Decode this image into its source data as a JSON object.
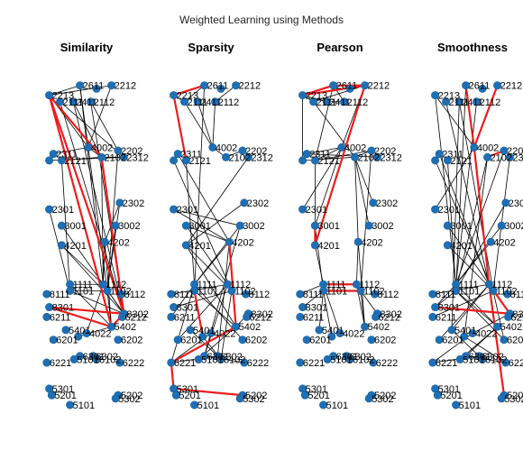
{
  "figure": {
    "title": "Weighted Learning using Methods"
  },
  "chart_data": {
    "type": "network",
    "node_color": "#1f6fb5",
    "edge_color": "#000000",
    "highlight_color": "#ee1c1c",
    "axes": "off",
    "nodes": [
      {
        "id": "2611",
        "x": 0.42,
        "y": 0.96
      },
      {
        "id": "2213",
        "x": 0.05,
        "y": 0.93
      },
      {
        "id": "2212",
        "x": 0.8,
        "y": 0.96
      },
      {
        "id": "2111",
        "x": 0.18,
        "y": 0.91
      },
      {
        "id": "2411",
        "x": 0.34,
        "y": 0.91
      },
      {
        "id": "2112",
        "x": 0.55,
        "y": 0.91
      },
      {
        "id": "2312b",
        "x": 0.62,
        "y": 0.95
      },
      {
        "id": "4002",
        "x": 0.52,
        "y": 0.77
      },
      {
        "id": "2312",
        "x": 0.95,
        "y": 0.74
      },
      {
        "id": "2202",
        "x": 0.88,
        "y": 0.76
      },
      {
        "id": "2102",
        "x": 0.68,
        "y": 0.74
      },
      {
        "id": "2311",
        "x": 0.1,
        "y": 0.75
      },
      {
        "id": "2221",
        "x": 0.05,
        "y": 0.73
      },
      {
        "id": "2121",
        "x": 0.2,
        "y": 0.73
      },
      {
        "id": "2302",
        "x": 0.9,
        "y": 0.6
      },
      {
        "id": "2301",
        "x": 0.05,
        "y": 0.58
      },
      {
        "id": "3001",
        "x": 0.2,
        "y": 0.53
      },
      {
        "id": "3002",
        "x": 0.85,
        "y": 0.53
      },
      {
        "id": "4201",
        "x": 0.2,
        "y": 0.47
      },
      {
        "id": "4202",
        "x": 0.72,
        "y": 0.48
      },
      {
        "id": "1112",
        "x": 0.7,
        "y": 0.35
      },
      {
        "id": "1111",
        "x": 0.3,
        "y": 0.35
      },
      {
        "id": "1102",
        "x": 0.75,
        "y": 0.33
      },
      {
        "id": "1101",
        "x": 0.3,
        "y": 0.33
      },
      {
        "id": "8112",
        "x": 0.92,
        "y": 0.32
      },
      {
        "id": "8111",
        "x": 0.02,
        "y": 0.32
      },
      {
        "id": "8301",
        "x": 0.05,
        "y": 0.28
      },
      {
        "id": "8302",
        "x": 0.95,
        "y": 0.26
      },
      {
        "id": "6211",
        "x": 0.02,
        "y": 0.25
      },
      {
        "id": "6212",
        "x": 0.93,
        "y": 0.25
      },
      {
        "id": "5402",
        "x": 0.8,
        "y": 0.22
      },
      {
        "id": "5401",
        "x": 0.25,
        "y": 0.21
      },
      {
        "id": "4022",
        "x": 0.5,
        "y": 0.2
      },
      {
        "id": "4012",
        "x": 0.4,
        "y": 0.19
      },
      {
        "id": "6201",
        "x": 0.1,
        "y": 0.18
      },
      {
        "id": "6202",
        "x": 0.88,
        "y": 0.18
      },
      {
        "id": "6301",
        "x": 0.42,
        "y": 0.13
      },
      {
        "id": "6302",
        "x": 0.58,
        "y": 0.13
      },
      {
        "id": "6221",
        "x": 0.02,
        "y": 0.11
      },
      {
        "id": "5101a",
        "x": 0.35,
        "y": 0.12
      },
      {
        "id": "6102",
        "x": 0.62,
        "y": 0.12
      },
      {
        "id": "6222",
        "x": 0.9,
        "y": 0.11
      },
      {
        "id": "5301",
        "x": 0.05,
        "y": 0.03
      },
      {
        "id": "5201",
        "x": 0.08,
        "y": 0.01
      },
      {
        "id": "5202",
        "x": 0.88,
        "y": 0.01
      },
      {
        "id": "5302",
        "x": 0.85,
        "y": 0.0
      },
      {
        "id": "5101",
        "x": 0.3,
        "y": -0.02
      }
    ],
    "labels": [
      {
        "node": "2611",
        "text": "2611"
      },
      {
        "node": "2213",
        "text": "2213"
      },
      {
        "node": "2212",
        "text": "2212"
      },
      {
        "node": "2111",
        "text": "2111"
      },
      {
        "node": "2411",
        "text": "2411"
      },
      {
        "node": "2112",
        "text": "2112"
      },
      {
        "node": "4002",
        "text": "4002"
      },
      {
        "node": "2312",
        "text": "2312"
      },
      {
        "node": "2202",
        "text": "2202"
      },
      {
        "node": "2102",
        "text": "2102"
      },
      {
        "node": "2311",
        "text": "2311"
      },
      {
        "node": "2121",
        "text": "2121"
      },
      {
        "node": "2302",
        "text": "2302"
      },
      {
        "node": "2301",
        "text": "2301"
      },
      {
        "node": "3001",
        "text": "3001"
      },
      {
        "node": "3002",
        "text": "3002"
      },
      {
        "node": "4201",
        "text": "4201"
      },
      {
        "node": "4202",
        "text": "4202"
      },
      {
        "node": "1112",
        "text": "1112"
      },
      {
        "node": "1111",
        "text": "1111"
      },
      {
        "node": "1102",
        "text": "1102"
      },
      {
        "node": "1101",
        "text": "1101"
      },
      {
        "node": "8112",
        "text": "8112"
      },
      {
        "node": "8111",
        "text": "8111"
      },
      {
        "node": "8301",
        "text": "8301"
      },
      {
        "node": "8302",
        "text": "8302"
      },
      {
        "node": "6211",
        "text": "6211"
      },
      {
        "node": "6212",
        "text": "6212"
      },
      {
        "node": "5402",
        "text": "5402"
      },
      {
        "node": "5401",
        "text": "5401"
      },
      {
        "node": "4022",
        "text": "4022"
      },
      {
        "node": "6201",
        "text": "6201"
      },
      {
        "node": "6202",
        "text": "6202"
      },
      {
        "node": "6301",
        "text": "6301"
      },
      {
        "node": "6302",
        "text": "6302"
      },
      {
        "node": "6221",
        "text": "6221"
      },
      {
        "node": "5101a",
        "text": "5101"
      },
      {
        "node": "6102",
        "text": "6102"
      },
      {
        "node": "6222",
        "text": "6222"
      },
      {
        "node": "5301",
        "text": "5301"
      },
      {
        "node": "5201",
        "text": "5201"
      },
      {
        "node": "5202",
        "text": "5202"
      },
      {
        "node": "5302",
        "text": "5302"
      },
      {
        "node": "5101",
        "text": "5101"
      }
    ],
    "panels": [
      {
        "title": "Similarity",
        "edges": [
          [
            "2213",
            "2611"
          ],
          [
            "2213",
            "2212"
          ],
          [
            "2213",
            "4002"
          ],
          [
            "2213",
            "2102"
          ],
          [
            "2213",
            "5402"
          ],
          [
            "2611",
            "4002"
          ],
          [
            "2111",
            "2312"
          ],
          [
            "2411",
            "2102"
          ],
          [
            "2112",
            "2202"
          ],
          [
            "2212",
            "4002"
          ],
          [
            "2311",
            "4002"
          ],
          [
            "2121",
            "2102"
          ],
          [
            "2221",
            "2312"
          ],
          [
            "4002",
            "2102"
          ],
          [
            "2102",
            "2312"
          ],
          [
            "2111",
            "8302"
          ],
          [
            "2411",
            "8302"
          ],
          [
            "4002",
            "1102"
          ],
          [
            "2102",
            "1112"
          ],
          [
            "2202",
            "1102"
          ],
          [
            "2302",
            "1102"
          ],
          [
            "3002",
            "1102"
          ],
          [
            "4201",
            "1112"
          ],
          [
            "4202",
            "1112"
          ],
          [
            "3001",
            "8302"
          ],
          [
            "4201",
            "8302"
          ],
          [
            "4202",
            "5402"
          ],
          [
            "1111",
            "1112"
          ],
          [
            "1101",
            "1102"
          ],
          [
            "1111",
            "5402"
          ],
          [
            "1101",
            "8302"
          ],
          [
            "1102",
            "5402"
          ],
          [
            "1112",
            "8302"
          ],
          [
            "2301",
            "1101"
          ],
          [
            "2302",
            "4202"
          ],
          [
            "2121",
            "1101"
          ],
          [
            "4012",
            "5402"
          ],
          [
            "4022",
            "1112"
          ],
          [
            "2611",
            "1112"
          ],
          [
            "2112",
            "8302"
          ]
        ],
        "highlight": [
          [
            "2213",
            "5402"
          ],
          [
            "2213",
            "8302"
          ],
          [
            "2213",
            "2102"
          ],
          [
            "2102",
            "8302"
          ],
          [
            "8301",
            "8302"
          ],
          [
            "8301",
            "5402"
          ],
          [
            "5402",
            "8302"
          ]
        ]
      },
      {
        "title": "Sparsity",
        "edges": [
          [
            "2213",
            "2111"
          ],
          [
            "2611",
            "2111"
          ],
          [
            "2212",
            "2112"
          ],
          [
            "2411",
            "4002"
          ],
          [
            "2112",
            "4002"
          ],
          [
            "2111",
            "4002"
          ],
          [
            "2102",
            "4002"
          ],
          [
            "2202",
            "2102"
          ],
          [
            "2311",
            "4202"
          ],
          [
            "2121",
            "1111"
          ],
          [
            "2221",
            "1102"
          ],
          [
            "2301",
            "4202"
          ],
          [
            "2301",
            "3002"
          ],
          [
            "3001",
            "4202"
          ],
          [
            "3001",
            "1112"
          ],
          [
            "3002",
            "1111"
          ],
          [
            "4201",
            "1102"
          ],
          [
            "4201",
            "5402"
          ],
          [
            "4202",
            "1111"
          ],
          [
            "4202",
            "6302"
          ],
          [
            "1111",
            "6221"
          ],
          [
            "1101",
            "5402"
          ],
          [
            "1112",
            "6301"
          ],
          [
            "1102",
            "6102"
          ],
          [
            "8111",
            "1112"
          ],
          [
            "8301",
            "1102"
          ],
          [
            "8302",
            "5402"
          ],
          [
            "6211",
            "1111"
          ],
          [
            "5401",
            "6302"
          ],
          [
            "4022",
            "6221"
          ],
          [
            "4012",
            "6102"
          ],
          [
            "6201",
            "1112"
          ],
          [
            "6202",
            "1111"
          ],
          [
            "6301",
            "6222"
          ],
          [
            "6302",
            "6221"
          ],
          [
            "5101a",
            "5402"
          ],
          [
            "2302",
            "4201"
          ],
          [
            "2312",
            "4201"
          ],
          [
            "2611",
            "1101"
          ],
          [
            "3002",
            "6301"
          ]
        ],
        "highlight": [
          [
            "2213",
            "2121"
          ],
          [
            "2213",
            "2611"
          ],
          [
            "4202",
            "5402"
          ],
          [
            "6221",
            "5301"
          ],
          [
            "5301",
            "5202"
          ],
          [
            "5402",
            "6221"
          ],
          [
            "1101",
            "4012"
          ]
        ]
      },
      {
        "title": "Pearson",
        "edges": [
          [
            "2213",
            "2111"
          ],
          [
            "2213",
            "2411"
          ],
          [
            "2611",
            "2112"
          ],
          [
            "2611",
            "2212"
          ],
          [
            "2212",
            "2111"
          ],
          [
            "2411",
            "2112"
          ],
          [
            "2111",
            "2102"
          ],
          [
            "4002",
            "2311"
          ],
          [
            "4002",
            "2121"
          ],
          [
            "2102",
            "2202"
          ],
          [
            "2311",
            "2312"
          ],
          [
            "2221",
            "2102"
          ],
          [
            "2121",
            "2202"
          ],
          [
            "2301",
            "4002"
          ],
          [
            "3001",
            "4002"
          ],
          [
            "4201",
            "2121"
          ],
          [
            "4202",
            "2102"
          ],
          [
            "2302",
            "2102"
          ],
          [
            "3002",
            "2102"
          ],
          [
            "1111",
            "4201"
          ],
          [
            "1112",
            "4202"
          ],
          [
            "1101",
            "3001"
          ],
          [
            "1102",
            "2202"
          ],
          [
            "8111",
            "1111"
          ],
          [
            "8301",
            "1101"
          ],
          [
            "5402",
            "1112"
          ],
          [
            "5402",
            "4202"
          ],
          [
            "1102",
            "5402"
          ],
          [
            "8302",
            "1102"
          ],
          [
            "4012",
            "1101"
          ],
          [
            "4022",
            "1111"
          ],
          [
            "5401",
            "1101"
          ],
          [
            "2611",
            "2121"
          ],
          [
            "2212",
            "4002"
          ],
          [
            "2213",
            "2221"
          ]
        ],
        "highlight": [
          [
            "2213",
            "2212"
          ],
          [
            "2213",
            "2611"
          ],
          [
            "2611",
            "2212"
          ],
          [
            "4201",
            "2212"
          ],
          [
            "4201",
            "3001"
          ],
          [
            "1111",
            "1112"
          ],
          [
            "1101",
            "1102"
          ],
          [
            "1111",
            "1101"
          ]
        ]
      },
      {
        "title": "Smoothness",
        "edges": [
          [
            "2213",
            "4002"
          ],
          [
            "2611",
            "4002"
          ],
          [
            "2212",
            "4002"
          ],
          [
            "2111",
            "1112"
          ],
          [
            "2411",
            "1102"
          ],
          [
            "2112",
            "1111"
          ],
          [
            "2102",
            "1101"
          ],
          [
            "2202",
            "1111"
          ],
          [
            "2311",
            "1112"
          ],
          [
            "2121",
            "1101"
          ],
          [
            "2221",
            "1102"
          ],
          [
            "2301",
            "4002"
          ],
          [
            "3001",
            "1112"
          ],
          [
            "4201",
            "1102"
          ],
          [
            "4202",
            "1111"
          ],
          [
            "2302",
            "1101"
          ],
          [
            "3002",
            "1111"
          ],
          [
            "1111",
            "5402"
          ],
          [
            "1101",
            "5402"
          ],
          [
            "1112",
            "5401"
          ],
          [
            "1102",
            "6202"
          ],
          [
            "8111",
            "1112"
          ],
          [
            "8301",
            "1111"
          ],
          [
            "8301",
            "1101"
          ],
          [
            "8302",
            "4022"
          ],
          [
            "6211",
            "1102"
          ],
          [
            "5401",
            "6302"
          ],
          [
            "5402",
            "6301"
          ],
          [
            "4022",
            "6221"
          ],
          [
            "4012",
            "6222"
          ],
          [
            "6201",
            "1112"
          ],
          [
            "6202",
            "1101"
          ],
          [
            "6301",
            "6222"
          ],
          [
            "6302",
            "6221"
          ],
          [
            "5101a",
            "5402"
          ],
          [
            "2312",
            "1102"
          ],
          [
            "2411",
            "5401"
          ],
          [
            "2102",
            "4012"
          ],
          [
            "2213",
            "1111"
          ],
          [
            "2611",
            "1101"
          ]
        ],
        "highlight": [
          [
            "2212",
            "4002"
          ],
          [
            "2611",
            "4002"
          ],
          [
            "4002",
            "1112"
          ],
          [
            "1112",
            "8302"
          ],
          [
            "8301",
            "8302"
          ],
          [
            "1112",
            "5202"
          ],
          [
            "2102",
            "2202"
          ]
        ]
      }
    ]
  }
}
